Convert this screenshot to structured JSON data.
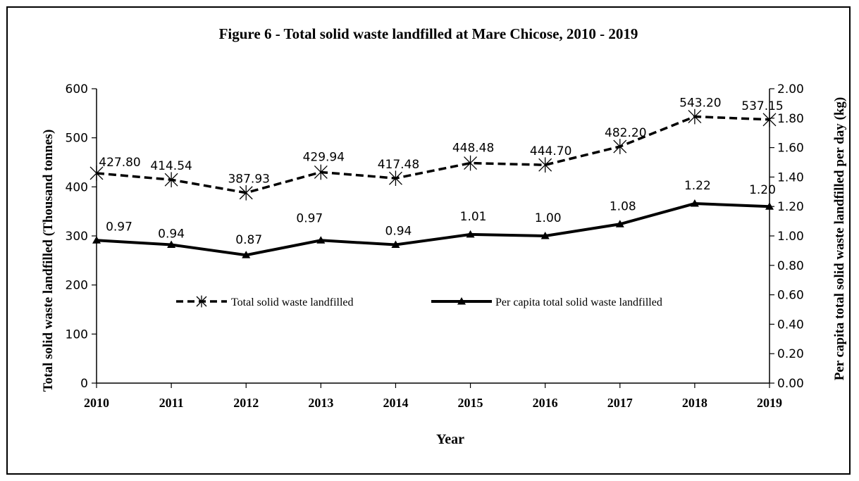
{
  "chart_data": {
    "type": "line",
    "title": "Figure 6 - Total solid waste landfilled  at Mare Chicose, 2010 - 2019",
    "xlabel": "Year",
    "ylabel_left": "Total solid waste landfilled (Thousand tonnes)",
    "ylabel_right": "Per capita total solid waste landfilled per day (kg)",
    "categories": [
      "2010",
      "2011",
      "2012",
      "2013",
      "2014",
      "2015",
      "2016",
      "2017",
      "2018",
      "2019"
    ],
    "ylim_left": [
      0,
      600
    ],
    "ylim_right": [
      0,
      2.0
    ],
    "yticks_left": [
      "0",
      "100",
      "200",
      "300",
      "400",
      "500",
      "600"
    ],
    "yticks_right": [
      "0.00",
      "0.20",
      "0.40",
      "0.60",
      "0.80",
      "1.00",
      "1.20",
      "1.40",
      "1.60",
      "1.80",
      "2.00"
    ],
    "grid": false,
    "legend_position": "center",
    "series": [
      {
        "name": "Total solid waste landfilled",
        "axis": "left",
        "style": "dashed",
        "marker": "asterisk",
        "values": [
          427.8,
          414.54,
          387.93,
          429.94,
          417.48,
          448.48,
          444.7,
          482.2,
          543.2,
          537.15
        ],
        "labels": [
          "427.80",
          "414.54",
          "387.93",
          "429.94",
          "417.48",
          "448.48",
          "444.70",
          "482.20",
          "543.20",
          "537.15"
        ]
      },
      {
        "name": "Per capita total solid waste landfilled",
        "axis": "right",
        "style": "solid",
        "marker": "triangle",
        "values": [
          0.97,
          0.94,
          0.87,
          0.97,
          0.94,
          1.01,
          1.0,
          1.08,
          1.22,
          1.2
        ],
        "labels": [
          "0.97",
          "0.94",
          "0.87",
          "0.97",
          "0.94",
          "1.01",
          "1.00",
          "1.08",
          "1.22",
          "1.20"
        ]
      }
    ],
    "colors": {
      "line": "#000000",
      "background": "#ffffff"
    }
  }
}
